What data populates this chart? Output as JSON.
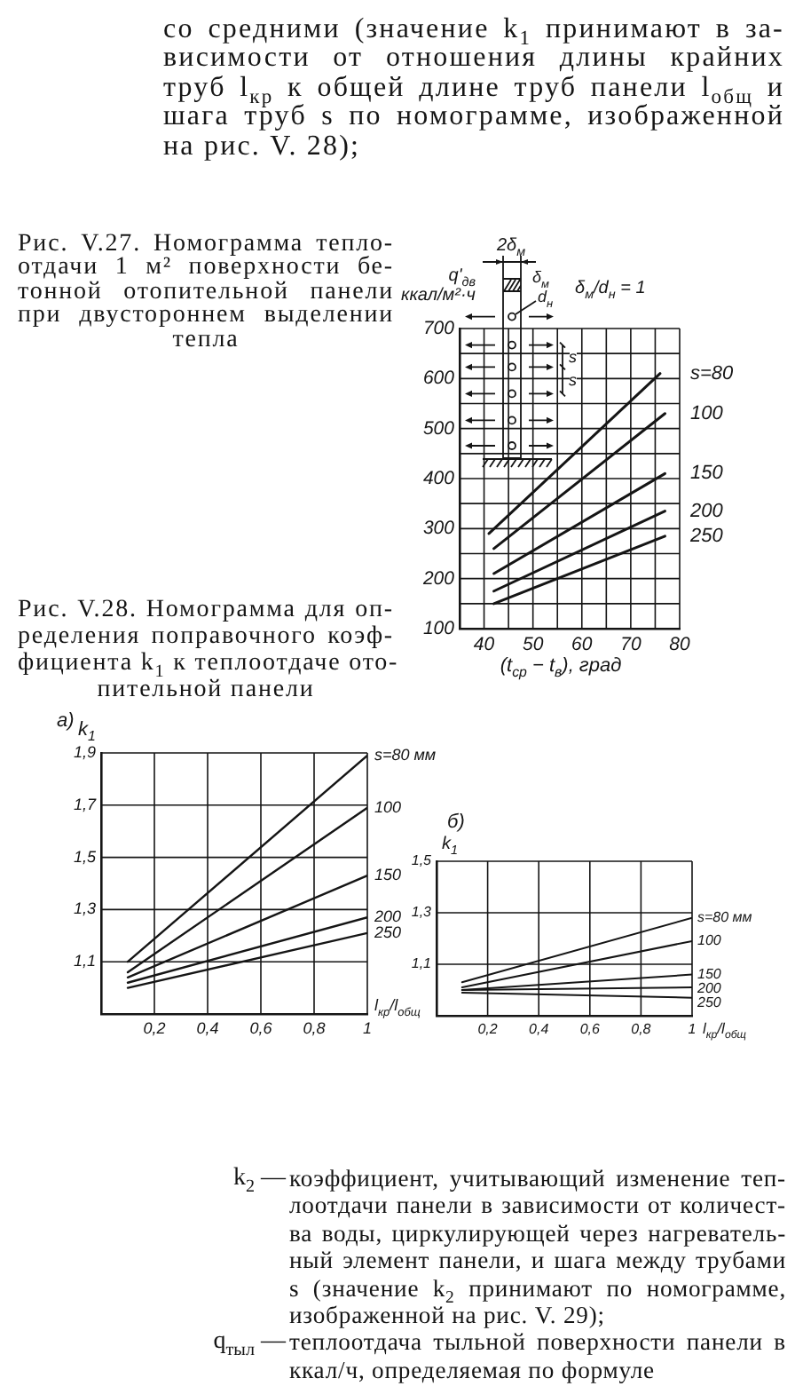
{
  "chart_data": [
    {
      "type": "line",
      "title": "Рис. V.27. Номограмма тепло-\nотдачи 1 м² поверхности бе-\nтонной отопительной панели\nпри двустороннем выделении\nтепла",
      "xlabel": "(t$_{ср}$ − t$_{в}$), град",
      "ylabel": "q'$_{дв}$ ккал/м²·ч",
      "annotations": [
        "со средними (значение k$_{1}$ принимают в за-\nвисимости от отношения длины крайних\nтруб l$_{кр}$ к общей длине труб панели l$_{общ}$ и\nшага труб s по номограмме, изображенной\nна рис. V. 28);",
        "2δ$_{м}$",
        "δ$_{м}$",
        "d$_{н}$",
        "δ$_{м}$/d$_{н}$ = 1",
        "s",
        "s"
      ],
      "xlim": [
        35,
        80
      ],
      "xticks": [
        {
          "value": 35,
          "label": null
        },
        40,
        {
          "value": 45,
          "label": null
        },
        50,
        {
          "value": 55,
          "label": null
        },
        60,
        {
          "value": 65,
          "label": null
        },
        70,
        {
          "value": 75,
          "label": null
        },
        80
      ],
      "ylim": [
        100,
        700
      ],
      "yticks": [
        100,
        {
          "value": 150,
          "label": null
        },
        200,
        {
          "value": 250,
          "label": null
        },
        300,
        {
          "value": 350,
          "label": null
        },
        400,
        {
          "value": 450,
          "label": null
        },
        500,
        {
          "value": 550,
          "label": null
        },
        600,
        {
          "value": 650,
          "label": null
        },
        700
      ],
      "grid": true,
      "series": [
        {
          "name": "s=80",
          "color": "#151515",
          "x": [
            41,
            76
          ],
          "values": [
            290,
            610
          ]
        },
        {
          "name": "100",
          "color": "#151515",
          "x": [
            42,
            77
          ],
          "values": [
            260,
            530
          ]
        },
        {
          "name": "150",
          "color": "#151515",
          "x": [
            42,
            77
          ],
          "values": [
            210,
            410
          ]
        },
        {
          "name": "200",
          "color": "#151515",
          "x": [
            42,
            77
          ],
          "values": [
            175,
            335
          ]
        },
        {
          "name": "250",
          "color": "#151515",
          "x": [
            42,
            77
          ],
          "values": [
            150,
            285
          ]
        }
      ]
    },
    {
      "type": "line",
      "title": "Рис. V.28. Номограмма для оп-\nределения поправочного коэф-\nфициента k$_{1}$ к теплоотдаче ото-\nпительной панели",
      "subtitle": "а)",
      "xlabel": "l$_{кр}$/l$_{общ}$",
      "ylabel": "k$_{1}$",
      "xlim": [
        0,
        1
      ],
      "xticks": [
        {
          "value": 0.2,
          "label": "0,2"
        },
        {
          "value": 0.4,
          "label": "0,4"
        },
        {
          "value": 0.6,
          "label": "0,6"
        },
        {
          "value": 0.8,
          "label": "0,8"
        },
        1
      ],
      "ylim": [
        0.9,
        1.9
      ],
      "yticks": [
        {
          "value": 1.1,
          "label": "1,1"
        },
        {
          "value": 1.3,
          "label": "1,3"
        },
        {
          "value": 1.5,
          "label": "1,5"
        },
        {
          "value": 1.7,
          "label": "1,7"
        },
        {
          "value": 1.9,
          "label": "1,9"
        }
      ],
      "grid": true,
      "series": [
        {
          "name": "s=80 мм",
          "color": "#151515",
          "x": [
            0.1,
            1
          ],
          "values": [
            1.1,
            1.89
          ]
        },
        {
          "name": "100",
          "color": "#151515",
          "x": [
            0.1,
            1
          ],
          "values": [
            1.06,
            1.69
          ]
        },
        {
          "name": "150",
          "color": "#151515",
          "x": [
            0.1,
            1
          ],
          "values": [
            1.04,
            1.43
          ]
        },
        {
          "name": "200",
          "color": "#151515",
          "x": [
            0.1,
            1
          ],
          "values": [
            1.02,
            1.27
          ]
        },
        {
          "name": "250",
          "color": "#151515",
          "x": [
            0.1,
            1
          ],
          "values": [
            1.0,
            1.21
          ]
        }
      ]
    },
    {
      "type": "line",
      "title": "б)",
      "xlabel": "l$_{кр}$/l$_{общ}$",
      "ylabel": "k$_{1}$",
      "annotations": [
        "k$_{2}$ —",
        "коэффициент, учитывающий изменение теп-\nлоотдачи панели в зависимости от количест-\nва воды, циркулирующей через нагреватель-\nный элемент панели, и шага между трубами\ns (значение k$_{2}$ принимают по номограмме,\nизображенной на рис. V. 29);",
        "q$_{тыл}$ —",
        "теплоотдача тыльной поверхности панели в\nккал/ч, определяемая по формуле"
      ],
      "xlim": [
        0,
        1
      ],
      "xticks": [
        {
          "value": 0.2,
          "label": "0,2"
        },
        {
          "value": 0.4,
          "label": "0,4"
        },
        {
          "value": 0.6,
          "label": "0,6"
        },
        {
          "value": 0.8,
          "label": "0,8"
        },
        1
      ],
      "ylim": [
        0.9,
        1.5
      ],
      "yticks": [
        {
          "value": 1.1,
          "label": "1,1"
        },
        {
          "value": 1.3,
          "label": "1,3"
        },
        {
          "value": 1.5,
          "label": "1,5"
        }
      ],
      "grid": true,
      "series": [
        {
          "name": "s=80 мм",
          "color": "#151515",
          "x": [
            0.1,
            1
          ],
          "values": [
            1.03,
            1.28
          ]
        },
        {
          "name": "100",
          "color": "#151515",
          "x": [
            0.1,
            1
          ],
          "values": [
            1.01,
            1.19
          ]
        },
        {
          "name": "150",
          "color": "#151515",
          "x": [
            0.1,
            1
          ],
          "values": [
            1.0,
            1.06
          ]
        },
        {
          "name": "200",
          "color": "#151515",
          "x": [
            0.1,
            1
          ],
          "values": [
            1.0,
            1.01
          ]
        },
        {
          "name": "250",
          "color": "#151515",
          "x": [
            0.1,
            1
          ],
          "values": [
            0.99,
            0.97
          ]
        }
      ]
    }
  ]
}
